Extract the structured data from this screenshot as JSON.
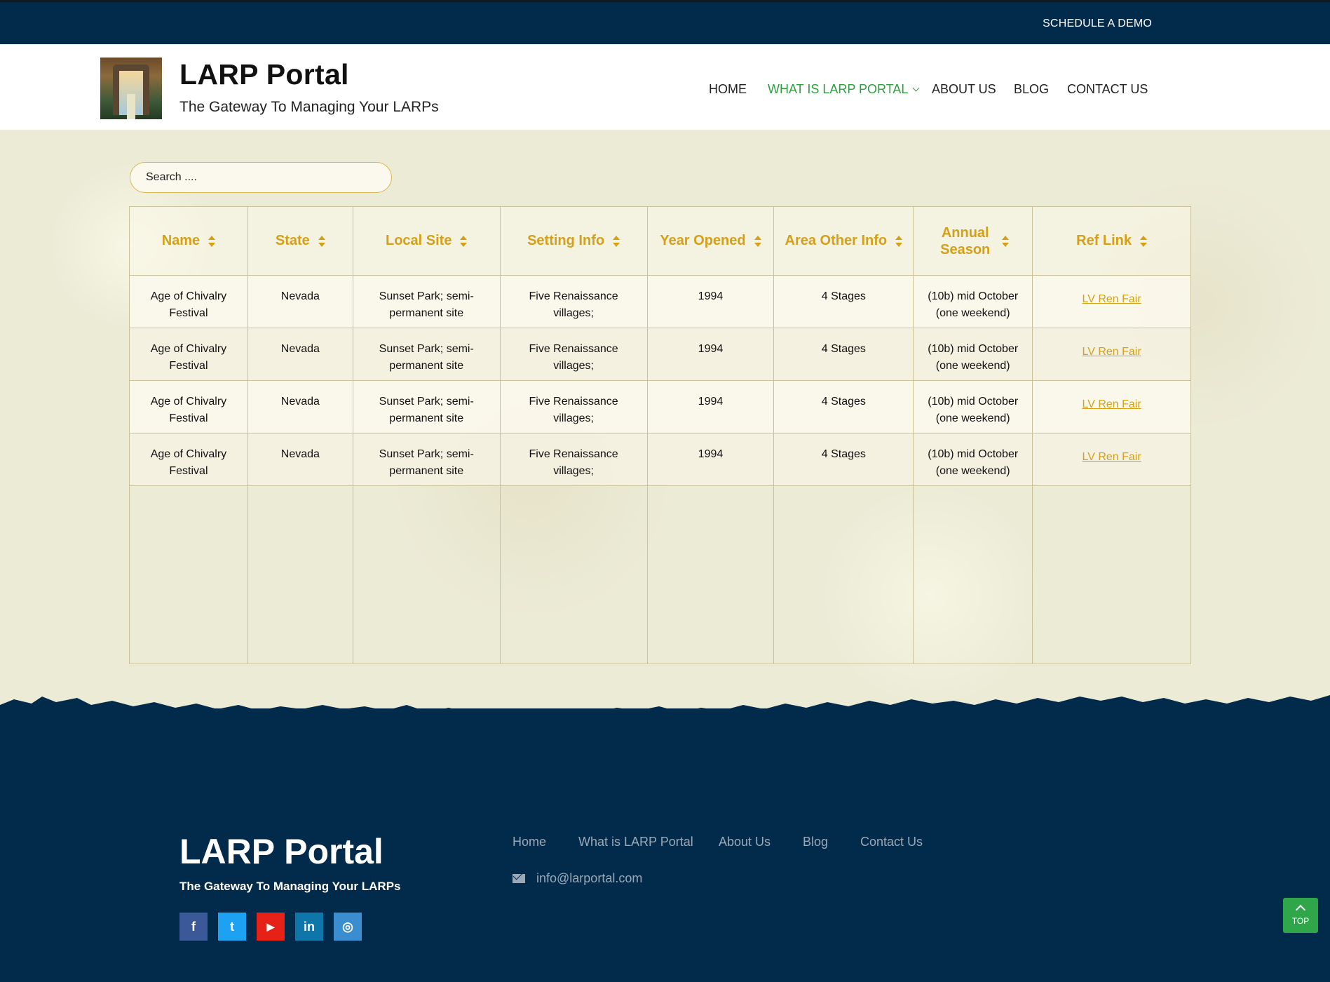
{
  "topbar": {
    "demo_label": "SCHEDULE A DEMO"
  },
  "header": {
    "logo_alt": "LARP Portal logo",
    "title": "LARP Portal",
    "tagline": "The Gateway To Managing Your LARPs",
    "nav": [
      {
        "label": "HOME"
      },
      {
        "label": "WHAT IS LARP PORTAL",
        "active": true,
        "has_dropdown": true
      },
      {
        "label": "ABOUT US"
      },
      {
        "label": "BLOG"
      },
      {
        "label": "CONTACT US"
      }
    ]
  },
  "search": {
    "placeholder": "Search ...."
  },
  "table": {
    "headers": [
      "Name",
      "State",
      "Local Site",
      "Setting Info",
      "Year Opened",
      "Area Other Info",
      "Annual Season",
      "Ref Link"
    ],
    "rows": [
      {
        "name": "Age of Chivalry Festival",
        "state": "Nevada",
        "local_site": "Sunset Park; semi-permanent site",
        "setting_info": "Five Renaissance villages;",
        "year_opened": "1994",
        "area_other_info": "4 Stages",
        "annual_season": "(10b) mid October (one weekend)",
        "ref_link": "LV Ren Fair"
      },
      {
        "name": "Age of Chivalry Festival",
        "state": "Nevada",
        "local_site": "Sunset Park; semi-permanent site",
        "setting_info": "Five Renaissance villages;",
        "year_opened": "1994",
        "area_other_info": "4 Stages",
        "annual_season": "(10b) mid October (one weekend)",
        "ref_link": "LV Ren Fair"
      },
      {
        "name": "Age of Chivalry Festival",
        "state": "Nevada",
        "local_site": "Sunset Park; semi-permanent site",
        "setting_info": "Five Renaissance villages;",
        "year_opened": "1994",
        "area_other_info": "4 Stages",
        "annual_season": "(10b) mid October (one weekend)",
        "ref_link": "LV Ren Fair"
      },
      {
        "name": "Age of Chivalry Festival",
        "state": "Nevada",
        "local_site": "Sunset Park; semi-permanent site",
        "setting_info": "Five Renaissance villages;",
        "year_opened": "1994",
        "area_other_info": "4 Stages",
        "annual_season": "(10b) mid October (one weekend)",
        "ref_link": "LV Ren Fair"
      }
    ]
  },
  "footer": {
    "title": "LARP Portal",
    "tagline": "The Gateway To Managing Your LARPs",
    "links": [
      "Home",
      "What is LARP Portal",
      "About Us",
      "Blog",
      "Contact Us"
    ],
    "email": "info@larportal.com",
    "socials": [
      {
        "icon": "facebook-icon",
        "glyph": "f",
        "color": "#3b5998"
      },
      {
        "icon": "twitter-icon",
        "glyph": "t",
        "color": "#1da1f2"
      },
      {
        "icon": "youtube-icon",
        "glyph": "▶",
        "color": "#e62117"
      },
      {
        "icon": "linkedin-icon",
        "glyph": "in",
        "color": "#0e76a8"
      },
      {
        "icon": "instagram-icon",
        "glyph": "◎",
        "color": "#3a8ed0"
      }
    ],
    "top_button_label": "TOP"
  },
  "colors": {
    "navy": "#022a4b",
    "gold": "#d4a017",
    "green": "#2e9e3f",
    "parchment": "#ecebd6"
  }
}
